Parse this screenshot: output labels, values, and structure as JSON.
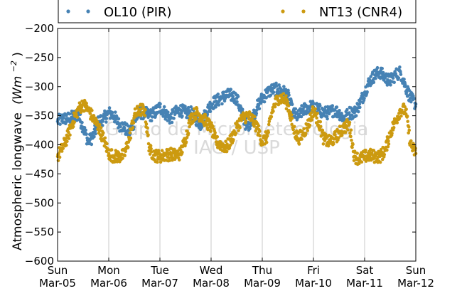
{
  "chart_data": {
    "type": "scatter",
    "ylabel": "Atmospheric longwave",
    "ylabel_unit": "(Wm",
    "ylabel_unit_exp": "−2",
    "ylabel_unit_close": ")",
    "ylim": [
      -600,
      -200
    ],
    "yticks": [
      -200,
      -250,
      -300,
      -350,
      -400,
      -450,
      -500,
      -550,
      -600
    ],
    "ytick_labels": [
      "−200",
      "−250",
      "−300",
      "−350",
      "−400",
      "−450",
      "−500",
      "−550",
      "−600"
    ],
    "xlim": [
      0,
      7
    ],
    "xticks": [
      {
        "day": "Sun",
        "date": "Mar-05"
      },
      {
        "day": "Mon",
        "date": "Mar-06"
      },
      {
        "day": "Tue",
        "date": "Mar-07"
      },
      {
        "day": "Wed",
        "date": "Mar-08"
      },
      {
        "day": "Thu",
        "date": "Mar-09"
      },
      {
        "day": "Fri",
        "date": "Mar-10"
      },
      {
        "day": "Sat",
        "date": "Mar-11"
      },
      {
        "day": "Sun",
        "date": "Mar-12"
      }
    ],
    "grid": "vertical",
    "legend_placement": "top",
    "watermark": {
      "line1": "Grupo de Micrometeorologia",
      "line2": "IAG / USP"
    },
    "series": [
      {
        "name": "OL10 (PIR)",
        "color": "#4682b4",
        "x": [
          0.0,
          0.1,
          0.2,
          0.3,
          0.4,
          0.5,
          0.6,
          0.7,
          0.8,
          0.9,
          1.0,
          1.1,
          1.2,
          1.3,
          1.4,
          1.5,
          1.6,
          1.7,
          1.8,
          1.9,
          2.0,
          2.1,
          2.2,
          2.3,
          2.4,
          2.5,
          2.6,
          2.7,
          2.8,
          2.9,
          3.0,
          3.1,
          3.2,
          3.3,
          3.4,
          3.5,
          3.6,
          3.7,
          3.8,
          3.9,
          4.0,
          4.1,
          4.2,
          4.3,
          4.4,
          4.5,
          4.6,
          4.7,
          4.8,
          4.9,
          5.0,
          5.1,
          5.2,
          5.3,
          5.4,
          5.5,
          5.6,
          5.7,
          5.8,
          5.9,
          6.0,
          6.1,
          6.2,
          6.3,
          6.4,
          6.5,
          6.6,
          6.7,
          6.8,
          6.9,
          7.0
        ],
        "y": [
          -360,
          -355,
          -355,
          -352,
          -348,
          -370,
          -395,
          -385,
          -360,
          -355,
          -345,
          -350,
          -365,
          -370,
          -380,
          -360,
          -345,
          -345,
          -350,
          -345,
          -335,
          -345,
          -355,
          -345,
          -340,
          -345,
          -345,
          -355,
          -365,
          -345,
          -330,
          -325,
          -320,
          -315,
          -315,
          -320,
          -345,
          -370,
          -355,
          -335,
          -320,
          -310,
          -305,
          -305,
          -308,
          -315,
          -345,
          -352,
          -340,
          -335,
          -335,
          -340,
          -345,
          -345,
          -340,
          -345,
          -355,
          -345,
          -345,
          -330,
          -310,
          -290,
          -280,
          -275,
          -285,
          -290,
          -280,
          -275,
          -300,
          -320,
          -330
        ]
      },
      {
        "name": "NT13 (CNR4)",
        "color": "#cc9a10",
        "x": [
          0.0,
          0.1,
          0.2,
          0.3,
          0.4,
          0.5,
          0.6,
          0.7,
          0.8,
          0.9,
          1.0,
          1.1,
          1.2,
          1.3,
          1.4,
          1.5,
          1.6,
          1.7,
          1.8,
          1.9,
          2.0,
          2.1,
          2.2,
          2.3,
          2.4,
          2.5,
          2.6,
          2.7,
          2.8,
          2.9,
          3.0,
          3.1,
          3.2,
          3.3,
          3.4,
          3.5,
          3.6,
          3.7,
          3.8,
          3.9,
          4.0,
          4.1,
          4.2,
          4.3,
          4.4,
          4.5,
          4.6,
          4.7,
          4.8,
          4.9,
          5.0,
          5.1,
          5.2,
          5.3,
          5.4,
          5.5,
          5.6,
          5.7,
          5.8,
          5.9,
          6.0,
          6.1,
          6.2,
          6.3,
          6.4,
          6.5,
          6.6,
          6.7,
          6.8,
          6.9,
          7.0
        ],
        "y": [
          -420,
          -405,
          -385,
          -360,
          -340,
          -330,
          -340,
          -355,
          -370,
          -390,
          -415,
          -420,
          -420,
          -418,
          -390,
          -350,
          -340,
          -340,
          -410,
          -418,
          -420,
          -418,
          -416,
          -418,
          -415,
          -390,
          -355,
          -345,
          -350,
          -360,
          -370,
          -395,
          -400,
          -405,
          -390,
          -370,
          -355,
          -350,
          -355,
          -370,
          -395,
          -385,
          -340,
          -320,
          -320,
          -330,
          -370,
          -390,
          -380,
          -365,
          -340,
          -360,
          -390,
          -395,
          -390,
          -380,
          -370,
          -365,
          -420,
          -425,
          -420,
          -418,
          -420,
          -420,
          -410,
          -380,
          -360,
          -340,
          -340,
          -400,
          -415
        ]
      }
    ]
  }
}
